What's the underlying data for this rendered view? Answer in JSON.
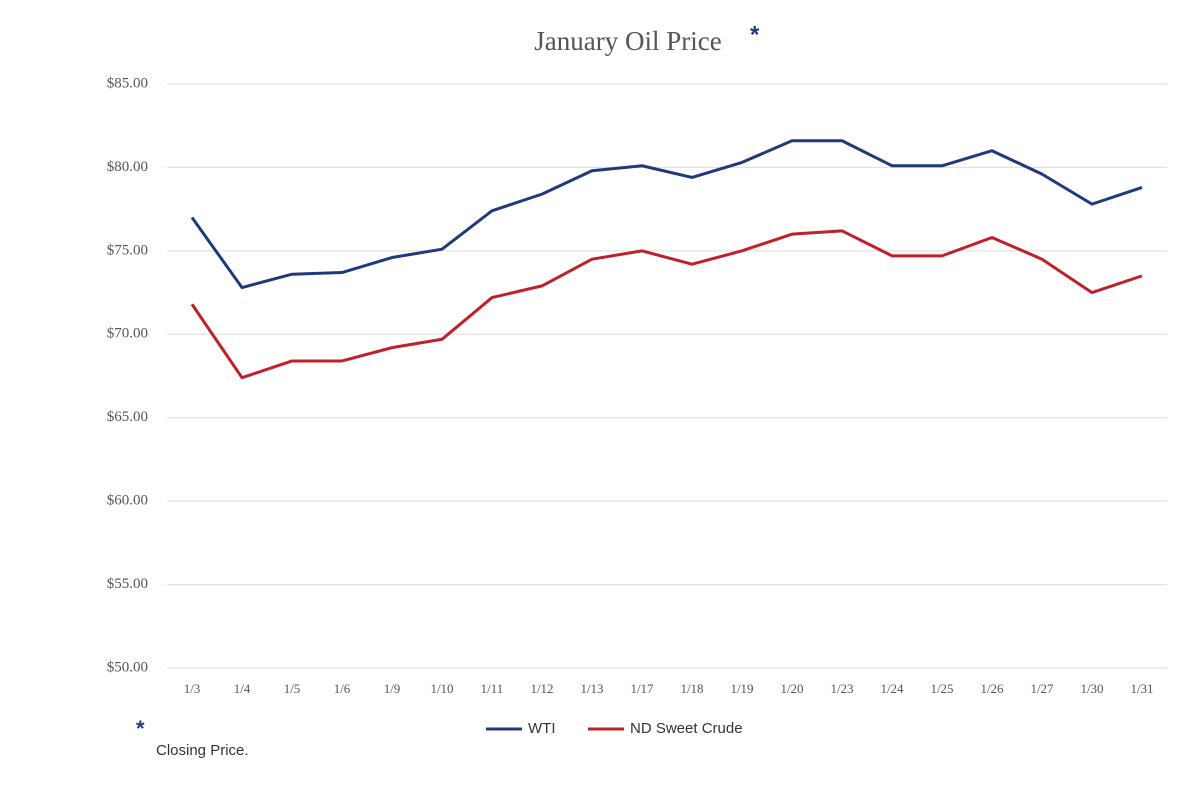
{
  "chart_data": {
    "type": "line",
    "title": "January Oil Price",
    "title_marker": "*",
    "footnote_marker": "*",
    "footnote": "Closing Price.",
    "categories": [
      "1/3",
      "1/4",
      "1/5",
      "1/6",
      "1/9",
      "1/10",
      "1/11",
      "1/12",
      "1/13",
      "1/17",
      "1/18",
      "1/19",
      "1/20",
      "1/23",
      "1/24",
      "1/25",
      "1/26",
      "1/27",
      "1/30",
      "1/31"
    ],
    "series": [
      {
        "name": "WTI",
        "color": "#1f3a7a",
        "values": [
          77.0,
          72.8,
          73.6,
          73.7,
          74.6,
          75.1,
          77.4,
          78.4,
          79.8,
          80.1,
          79.4,
          80.3,
          81.6,
          81.6,
          80.1,
          80.1,
          81.0,
          79.6,
          77.8,
          78.8
        ]
      },
      {
        "name": "ND Sweet Crude",
        "color": "#c0202a",
        "values": [
          71.8,
          67.4,
          68.4,
          68.4,
          69.2,
          69.7,
          72.2,
          72.9,
          74.5,
          75.0,
          74.2,
          75.0,
          76.0,
          76.2,
          74.7,
          74.7,
          75.8,
          74.5,
          72.5,
          73.5
        ]
      }
    ],
    "ylim": [
      50,
      85
    ],
    "yticks": [
      {
        "value": 50,
        "label": "$50.00"
      },
      {
        "value": 55,
        "label": "$55.00"
      },
      {
        "value": 60,
        "label": "$60.00"
      },
      {
        "value": 65,
        "label": "$65.00"
      },
      {
        "value": 70,
        "label": "$70.00"
      },
      {
        "value": 75,
        "label": "$75.00"
      },
      {
        "value": 80,
        "label": "$80.00"
      },
      {
        "value": 85,
        "label": "$85.00"
      }
    ],
    "grid": true,
    "legend": "bottom"
  }
}
